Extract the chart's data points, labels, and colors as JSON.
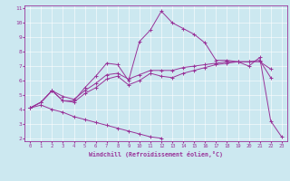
{
  "xlabel": "Windchill (Refroidissement éolien,°C)",
  "xlim": [
    -0.5,
    23.5
  ],
  "ylim": [
    1.8,
    11.2
  ],
  "xticks": [
    0,
    1,
    2,
    3,
    4,
    5,
    6,
    7,
    8,
    9,
    10,
    11,
    12,
    13,
    14,
    15,
    16,
    17,
    18,
    19,
    20,
    21,
    22,
    23
  ],
  "yticks": [
    2,
    3,
    4,
    5,
    6,
    7,
    8,
    9,
    10,
    11
  ],
  "bg_color": "#cce8f0",
  "line_color": "#993399",
  "grid_color": "#ffffff",
  "series": [
    [
      4.1,
      4.5,
      5.3,
      4.6,
      4.6,
      5.5,
      6.3,
      7.2,
      7.1,
      6.0,
      8.7,
      9.5,
      10.8,
      10.0,
      9.6,
      9.2,
      8.6,
      7.4,
      7.4,
      7.3,
      7.0,
      7.6,
      3.2,
      2.1
    ],
    [
      4.1,
      4.5,
      5.3,
      4.6,
      4.5,
      5.1,
      5.5,
      6.1,
      6.3,
      5.7,
      6.0,
      6.5,
      6.3,
      6.2,
      6.5,
      6.7,
      6.9,
      7.1,
      7.2,
      7.3,
      7.3,
      7.4,
      6.2,
      null
    ],
    [
      4.1,
      4.5,
      5.3,
      4.9,
      4.7,
      5.3,
      5.8,
      6.4,
      6.5,
      6.1,
      6.4,
      6.7,
      6.7,
      6.7,
      6.9,
      7.0,
      7.1,
      7.2,
      7.3,
      7.3,
      7.3,
      7.3,
      6.8,
      null
    ],
    [
      4.1,
      4.3,
      4.0,
      3.8,
      3.5,
      3.3,
      3.1,
      2.9,
      2.7,
      2.5,
      2.3,
      2.1,
      2.0,
      null,
      null,
      null,
      null,
      null,
      null,
      null,
      null,
      null,
      null,
      null
    ]
  ]
}
